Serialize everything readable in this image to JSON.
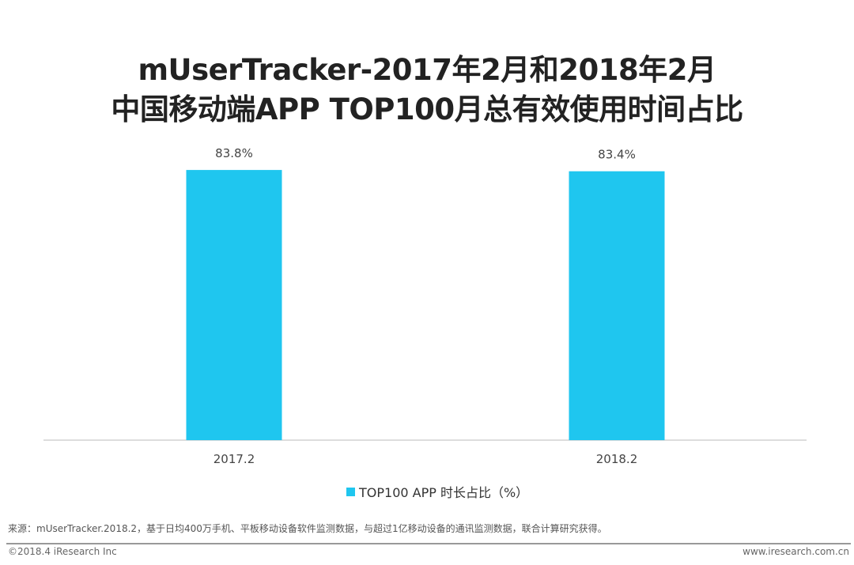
{
  "chart_data": {
    "type": "bar",
    "title": "mUserTracker-2017年2月和2018年2月 中国移动端APP TOP100月总有效使用时间占比",
    "title_lines": [
      "mUserTracker-2017年2月和2018年2月",
      "中国移动端APP TOP100月总有效使用时间占比"
    ],
    "categories": [
      "2017.2",
      "2018.2"
    ],
    "series": [
      {
        "name": "TOP100 APP 时长占比（%）",
        "values": [
          83.8,
          83.4
        ],
        "color": "#1fc6ef"
      }
    ],
    "data_labels": [
      "83.8%",
      "83.4%"
    ],
    "xlabel": "",
    "ylabel": "",
    "ylim": [
      0,
      100
    ],
    "grid": false,
    "legend": "bottom-center"
  },
  "footer": {
    "source": "来源：mUserTracker.2018.2，基于日均400万手机、平板移动设备软件监测数据，与超过1亿移动设备的通讯监测数据，联合计算研究获得。",
    "copyright": "©2018.4 iResearch Inc",
    "url": "www.iresearch.com.cn"
  }
}
